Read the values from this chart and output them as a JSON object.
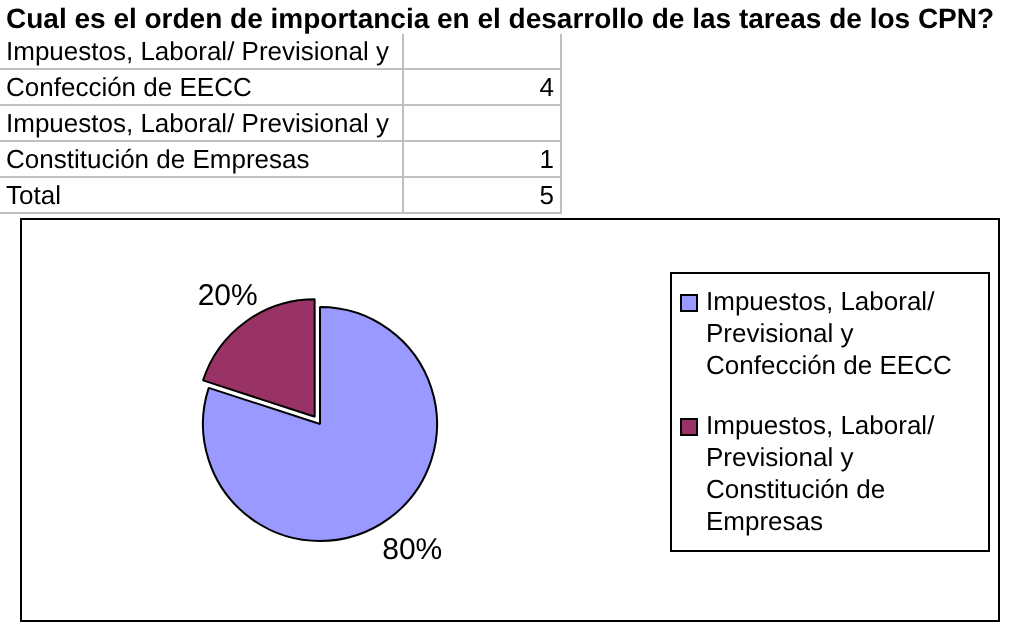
{
  "chart_data": {
    "type": "pie",
    "title": "Cual es el orden de importancia en el desarrollo de las tareas de los CPN?",
    "categories": [
      "Impuestos, Laboral/ Previsional y Confección de EECC",
      "Impuestos, Laboral/ Previsional y Constitución de Empresas"
    ],
    "values": [
      80,
      20
    ],
    "colors": [
      "#9999ff",
      "#993366"
    ],
    "value_labels": [
      "80%",
      "20%"
    ],
    "annotations": [
      "Impuestos, Laboral/ Previsional y",
      "Confección de EECC",
      "4",
      "Impuestos, Laboral/ Previsional y",
      "Constitución de Empresas",
      "1",
      "Total",
      "5"
    ],
    "legend": "right"
  }
}
